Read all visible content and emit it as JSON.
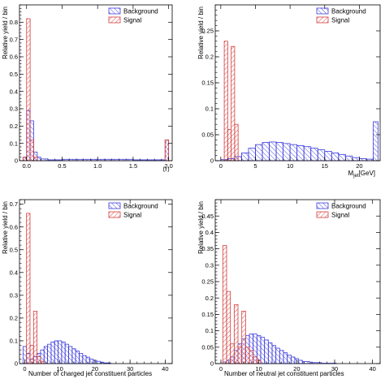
{
  "colors": {
    "background": "#3a3adf",
    "signal": "#d63a3a"
  },
  "legend": {
    "background": "Background",
    "signal": "Signal"
  },
  "chart_data": [
    {
      "type": "histogram",
      "title": "",
      "xlabel": "⟨r⟩",
      "ylabel": "Relative yield / bin",
      "xlim": [
        -0.1,
        2.05
      ],
      "ylim": [
        0,
        0.9
      ],
      "xticks": [
        0,
        0.5,
        1,
        1.5,
        2
      ],
      "xtick_labels": [
        "0.0",
        "0.5",
        "1.0",
        "1.5",
        "2.0"
      ],
      "yticks": [
        0,
        0.1,
        0.2,
        0.3,
        0.4,
        0.5,
        0.6,
        0.7,
        0.8
      ],
      "ytick_labels": [
        "0",
        "0.1",
        "0.2",
        "0.3",
        "0.4",
        "0.5",
        "0.6",
        "0.7",
        "0.8"
      ],
      "legend_position": "top-right",
      "series": [
        {
          "name": "Background",
          "color_key": "background",
          "edges": [
            -0.05,
            0.0,
            0.05,
            0.1,
            0.15,
            0.2,
            0.3,
            0.5,
            1.0,
            1.5,
            1.95,
            2.0
          ],
          "values": [
            0.02,
            0.29,
            0.23,
            0.05,
            0.02,
            0.01,
            0.005,
            0.008,
            0.008,
            0.005,
            0.12
          ]
        },
        {
          "name": "Signal",
          "color_key": "signal",
          "edges": [
            -0.05,
            0.0,
            0.05,
            0.1,
            0.15,
            1.95,
            2.0
          ],
          "values": [
            0.02,
            0.82,
            0.12,
            0.02,
            0.0,
            0.12
          ]
        }
      ]
    },
    {
      "type": "histogram",
      "title": "",
      "xlabel": "M",
      "xlabel_sub": "jet",
      "xlabel_unit": "[GeV]",
      "ylabel": "Relative yield / bin",
      "xlim": [
        -0.8,
        23
      ],
      "ylim": [
        0,
        0.3
      ],
      "xticks": [
        0,
        5,
        10,
        15,
        20
      ],
      "xtick_labels": [
        "0",
        "5",
        "10",
        "15",
        "20"
      ],
      "yticks": [
        0,
        0.05,
        0.1,
        0.15,
        0.2,
        0.25
      ],
      "ytick_labels": [
        "0",
        "0.05",
        "0.1",
        "0.15",
        "0.2",
        "0.25"
      ],
      "legend_position": "top-right",
      "series": [
        {
          "name": "Background",
          "color_key": "background",
          "edges": [
            0,
            1,
            2,
            3,
            4,
            5,
            6,
            7,
            8,
            9,
            10,
            11,
            12,
            13,
            14,
            15,
            16,
            17,
            18,
            19,
            20,
            21,
            22,
            22.7
          ],
          "values": [
            0.002,
            0.004,
            0.008,
            0.015,
            0.024,
            0.031,
            0.035,
            0.036,
            0.035,
            0.033,
            0.031,
            0.029,
            0.027,
            0.024,
            0.021,
            0.018,
            0.015,
            0.012,
            0.009,
            0.006,
            0.004,
            0.003,
            0.075
          ]
        },
        {
          "name": "Signal",
          "color_key": "signal",
          "edges": [
            0.5,
            1.0,
            1.5,
            2.0,
            2.5
          ],
          "values": [
            0.23,
            0.06,
            0.22,
            0.07
          ]
        }
      ]
    },
    {
      "type": "histogram",
      "title": "",
      "xlabel": "Number of charged jet constituent particles",
      "ylabel": "Relative yield / bin",
      "xlim": [
        -1.5,
        42
      ],
      "ylim": [
        0,
        0.72
      ],
      "xticks": [
        0,
        10,
        20,
        30,
        40
      ],
      "xtick_labels": [
        "0",
        "10",
        "20",
        "30",
        "40"
      ],
      "yticks": [
        0,
        0.1,
        0.2,
        0.3,
        0.4,
        0.5,
        0.6,
        0.7
      ],
      "ytick_labels": [
        "0",
        "0.1",
        "0.2",
        "0.3",
        "0.4",
        "0.5",
        "0.6",
        "0.7"
      ],
      "legend_position": "top-right",
      "series": [
        {
          "name": "Background",
          "color_key": "background",
          "edges": [
            -0.5,
            0.5,
            1.5,
            2.5,
            3.5,
            4.5,
            5.5,
            6.5,
            7.5,
            8.5,
            9.5,
            10.5,
            11.5,
            12.5,
            13.5,
            14.5,
            15.5,
            16.5,
            17.5,
            18.5,
            19.5,
            20.5,
            21.5,
            22.5,
            24.5
          ],
          "values": [
            0.075,
            0.045,
            0.02,
            0.03,
            0.045,
            0.06,
            0.075,
            0.085,
            0.095,
            0.1,
            0.1,
            0.095,
            0.085,
            0.075,
            0.065,
            0.055,
            0.045,
            0.035,
            0.028,
            0.02,
            0.014,
            0.01,
            0.006,
            0.003
          ]
        },
        {
          "name": "Signal",
          "color_key": "signal",
          "edges": [
            0.5,
            1.5,
            2.5,
            3.5,
            4.5,
            5.5
          ],
          "values": [
            0.66,
            0.08,
            0.23,
            0.03,
            0.01
          ]
        }
      ]
    },
    {
      "type": "histogram",
      "title": "",
      "xlabel": "Number of neutral jet constituent particles",
      "ylabel": "Relative yield / bin",
      "xlim": [
        -1.5,
        42
      ],
      "ylim": [
        0,
        0.5
      ],
      "xticks": [
        0,
        10,
        20,
        30,
        40
      ],
      "xtick_labels": [
        "0",
        "10",
        "20",
        "30",
        "40"
      ],
      "yticks": [
        0,
        0.05,
        0.1,
        0.15,
        0.2,
        0.25,
        0.3,
        0.35,
        0.4,
        0.45
      ],
      "ytick_labels": [
        "0",
        "0.05",
        "0.1",
        "0.15",
        "0.2",
        "0.25",
        "0.3",
        "0.35",
        "0.4",
        "0.45"
      ],
      "legend_position": "top-right",
      "series": [
        {
          "name": "Background",
          "color_key": "background",
          "edges": [
            0.5,
            1.5,
            2.5,
            3.5,
            4.5,
            5.5,
            6.5,
            7.5,
            8.5,
            9.5,
            10.5,
            11.5,
            12.5,
            13.5,
            14.5,
            15.5,
            16.5,
            17.5,
            18.5,
            19.5,
            20.5,
            21.5,
            23.5,
            26.5,
            30.5
          ],
          "values": [
            0.005,
            0.01,
            0.02,
            0.04,
            0.06,
            0.075,
            0.085,
            0.09,
            0.09,
            0.085,
            0.08,
            0.072,
            0.063,
            0.055,
            0.047,
            0.04,
            0.033,
            0.026,
            0.02,
            0.015,
            0.01,
            0.006,
            0.003,
            0.001
          ]
        },
        {
          "name": "Signal",
          "color_key": "signal",
          "edges": [
            0.5,
            1.5,
            2.5,
            3.5,
            4.5,
            5.5,
            6.5,
            7.5,
            8.5,
            9.5,
            10.5
          ],
          "values": [
            0.36,
            0.22,
            0.06,
            0.18,
            0.05,
            0.16,
            0.05,
            0.04,
            0.02,
            0.01
          ]
        }
      ]
    }
  ]
}
